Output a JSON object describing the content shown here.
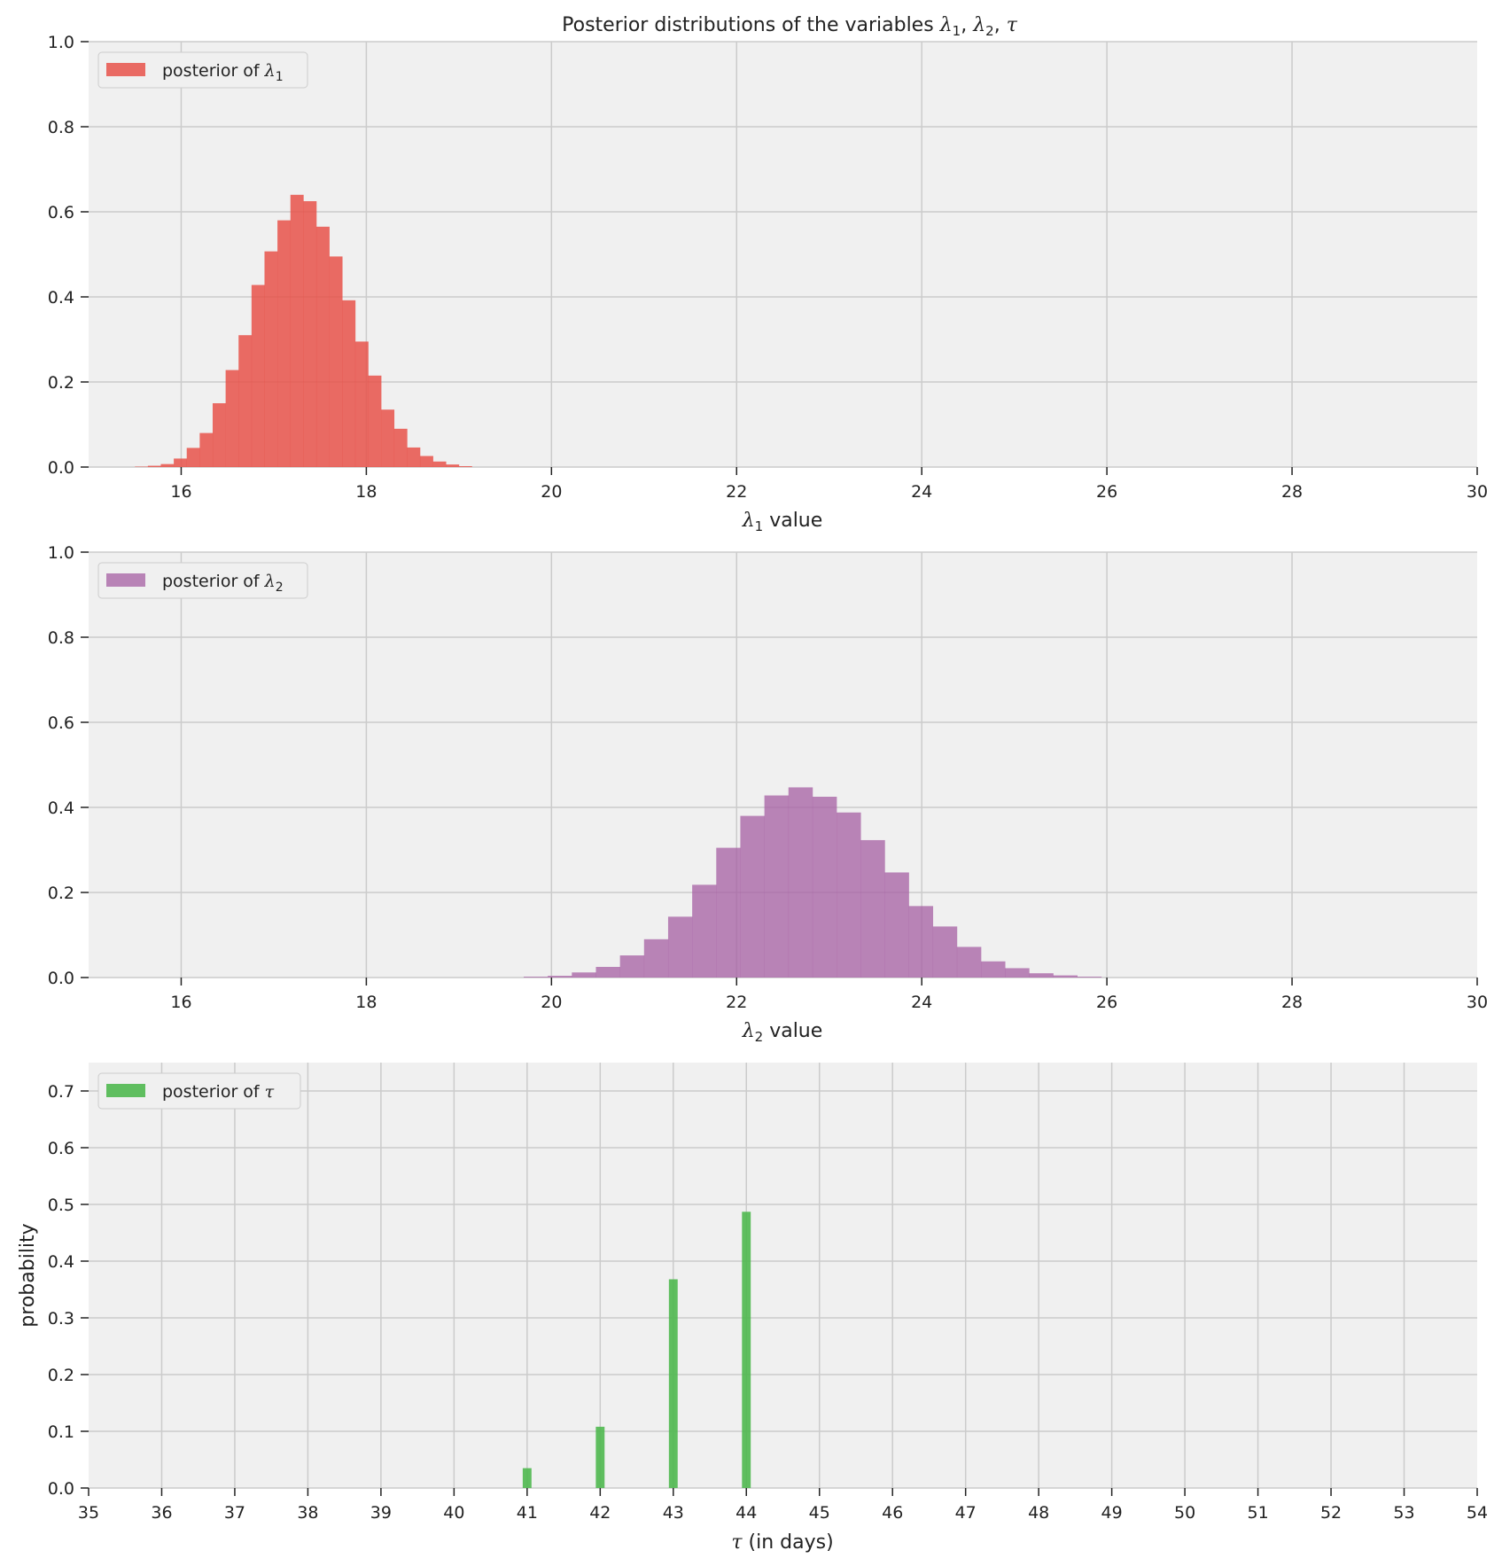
{
  "chart_data": [
    {
      "type": "bar",
      "title": "Posterior distributions of the variables λ1, λ2, τ",
      "title_parts": {
        "lead": "Posterior distributions of the variables ",
        "v1": "λ",
        "s1": "1",
        "sep1": ", ",
        "v2": "λ",
        "s2": "2",
        "sep2": ", ",
        "v3": "τ"
      },
      "xlabel": "λ1 value",
      "xlabel_parts": {
        "var": "λ",
        "sub": "1",
        "rest": " value"
      },
      "ylabel": "",
      "xlim": [
        15,
        30
      ],
      "ylim": [
        0,
        1.0
      ],
      "xticks": [
        "16",
        "18",
        "20",
        "22",
        "24",
        "26",
        "28",
        "30"
      ],
      "yticks": [
        "0.0",
        "0.2",
        "0.4",
        "0.6",
        "0.8",
        "1.0"
      ],
      "grid": true,
      "legend_position": "top-left",
      "color": "#e8524a",
      "series": [
        {
          "name": "posterior of λ1",
          "legend_parts": {
            "text": "posterior of ",
            "var": "λ",
            "sub": "1"
          },
          "bin_start": 15.5,
          "bin_width": 0.14,
          "values": [
            0.001,
            0.003,
            0.007,
            0.02,
            0.045,
            0.08,
            0.15,
            0.228,
            0.31,
            0.428,
            0.507,
            0.58,
            0.64,
            0.625,
            0.565,
            0.495,
            0.392,
            0.295,
            0.215,
            0.135,
            0.09,
            0.046,
            0.026,
            0.013,
            0.006,
            0.002
          ]
        }
      ]
    },
    {
      "type": "bar",
      "xlabel": "λ2 value",
      "xlabel_parts": {
        "var": "λ",
        "sub": "2",
        "rest": " value"
      },
      "ylabel": "",
      "xlim": [
        15,
        30
      ],
      "ylim": [
        0,
        1.0
      ],
      "xticks": [
        "16",
        "18",
        "20",
        "22",
        "24",
        "26",
        "28",
        "30"
      ],
      "yticks": [
        "0.0",
        "0.2",
        "0.4",
        "0.6",
        "0.8",
        "1.0"
      ],
      "grid": true,
      "legend_position": "top-left",
      "color": "#a65fa3",
      "series": [
        {
          "name": "posterior of λ2",
          "legend_parts": {
            "text": "posterior of ",
            "var": "λ",
            "sub": "2"
          },
          "bin_start": 19.7,
          "bin_width": 0.26,
          "values": [
            0.002,
            0.004,
            0.012,
            0.025,
            0.052,
            0.09,
            0.143,
            0.218,
            0.305,
            0.38,
            0.428,
            0.447,
            0.425,
            0.388,
            0.323,
            0.247,
            0.168,
            0.12,
            0.072,
            0.038,
            0.022,
            0.01,
            0.005,
            0.002
          ]
        }
      ]
    },
    {
      "type": "bar",
      "xlabel": "τ (in days)",
      "xlabel_parts": {
        "var": "τ",
        "rest": " (in days)"
      },
      "ylabel": "probability",
      "xlim": [
        35,
        54
      ],
      "ylim": [
        0,
        0.75
      ],
      "xticks": [
        "35",
        "36",
        "37",
        "38",
        "39",
        "40",
        "41",
        "42",
        "43",
        "44",
        "45",
        "46",
        "47",
        "48",
        "49",
        "50",
        "51",
        "52",
        "53",
        "54"
      ],
      "yticks": [
        "0.0",
        "0.1",
        "0.2",
        "0.3",
        "0.4",
        "0.5",
        "0.6",
        "0.7"
      ],
      "grid": true,
      "legend_position": "top-left",
      "color": "#4fb84f",
      "series": [
        {
          "name": "posterior of τ",
          "legend_parts": {
            "text": "posterior of ",
            "var": "τ"
          },
          "x": [
            41,
            42,
            43,
            44
          ],
          "values": [
            0.035,
            0.108,
            0.368,
            0.487
          ]
        }
      ]
    }
  ]
}
